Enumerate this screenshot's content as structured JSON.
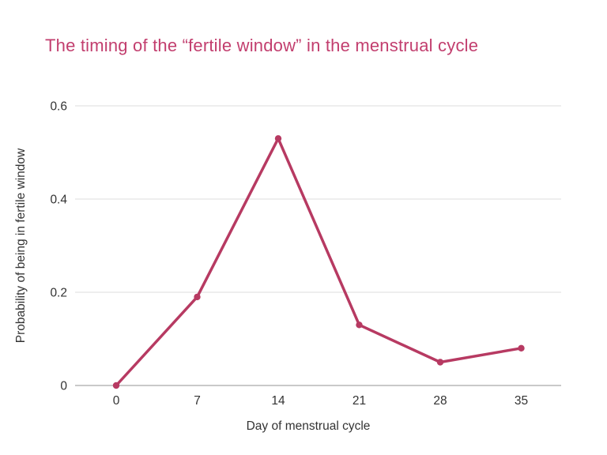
{
  "page": {
    "background_color": "#ffffff"
  },
  "title": {
    "text": "The timing of the “fertile window” in the menstrual cycle",
    "color": "#c23e6e"
  },
  "chart_data": {
    "type": "line",
    "title": "The timing of the “fertile window” in the menstrual cycle",
    "x": [
      0,
      7,
      14,
      21,
      28,
      35
    ],
    "values": [
      0,
      0.19,
      0.53,
      0.13,
      0.05,
      0.08
    ],
    "series_name": "Probability of being in fertile window",
    "xlabel": "Day of menstrual cycle",
    "ylabel": "Probability of being in fertile window",
    "xtick_labels": [
      "0",
      "7",
      "14",
      "21",
      "28",
      "35"
    ],
    "yticks": [
      0,
      0.2,
      0.4,
      0.6
    ],
    "ytick_labels": [
      "0",
      "0.2",
      "0.4",
      "0.6"
    ],
    "ylim": [
      0,
      0.6
    ],
    "grid": "horizontal-only",
    "legend": "none",
    "style": {
      "line_color": "#b73a62",
      "marker_color": "#b73a62",
      "marker_shape": "circle",
      "gridline_color": "#e3e3e3",
      "zeroline_color": "#c9c9c9",
      "axis_text_color": "#333333"
    }
  }
}
